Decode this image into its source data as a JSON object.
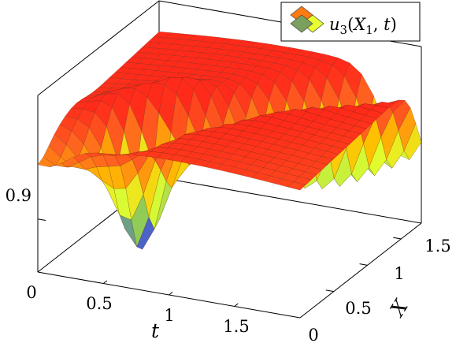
{
  "chart_data": {
    "type": "surface",
    "series": [
      {
        "name": "u_3(X_1, t)",
        "legend_main": "u",
        "legend_sub": "3",
        "legend_args_open": "(",
        "legend_var": "X",
        "legend_var_sub": "1",
        "legend_comma": ", ",
        "legend_var2": "t",
        "legend_args_close": ")"
      }
    ],
    "axes": {
      "t": {
        "label": "t",
        "range": [
          0,
          2
        ],
        "ticks": [
          "0",
          "0.5",
          "1",
          "1.5"
        ]
      },
      "X": {
        "label": "X",
        "range": [
          0,
          1.8
        ],
        "ticks": [
          "0",
          "0.5",
          "1",
          "1.5"
        ]
      },
      "z": {
        "range": [
          0.84,
          1.04
        ],
        "ticks": [
          "0.9"
        ]
      }
    },
    "colormap": [
      "#3030ff",
      "#80c060",
      "#e0ff30",
      "#ffc000",
      "#ff6020",
      "#ff2a1a"
    ],
    "legend_placement": "top-right",
    "grid": false
  }
}
